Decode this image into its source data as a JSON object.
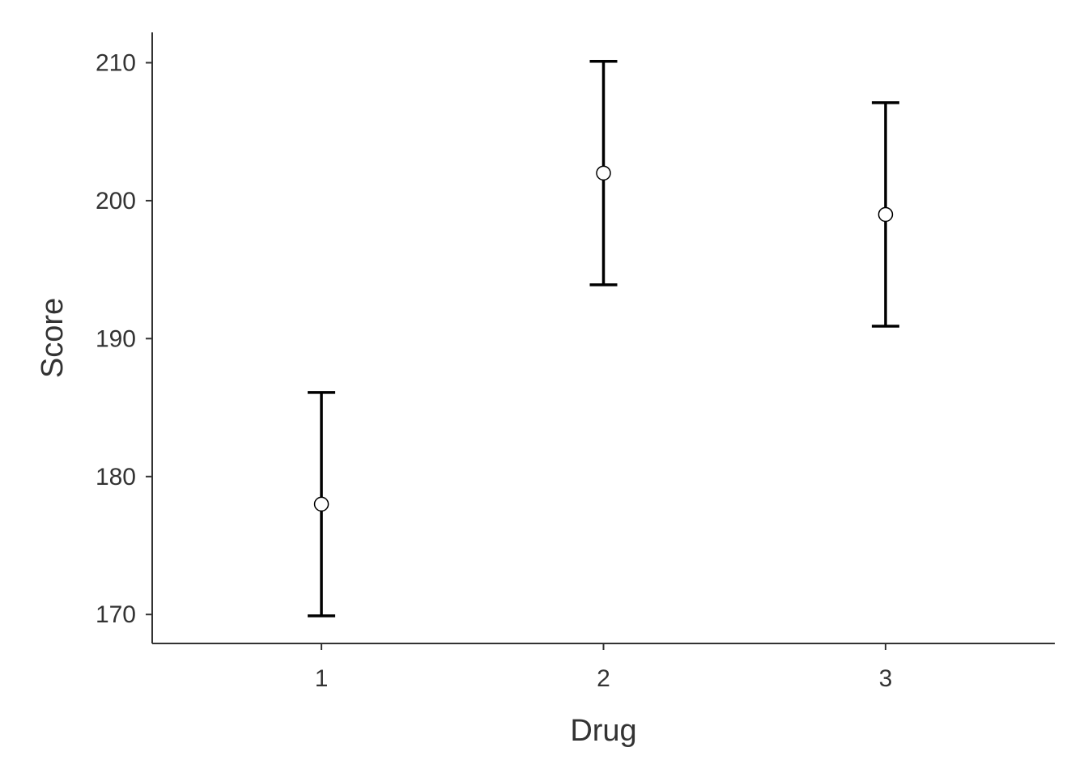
{
  "chart_data": {
    "type": "errorbar",
    "title": "",
    "xlabel": "Drug",
    "ylabel": "Score",
    "categories": [
      "1",
      "2",
      "3"
    ],
    "values": [
      178,
      202,
      199
    ],
    "lower": [
      169.9,
      193.9,
      190.9
    ],
    "upper": [
      186.1,
      210.1,
      207.1
    ],
    "ylim": [
      167.9,
      212.2
    ],
    "yticks": [
      170,
      180,
      190,
      200,
      210
    ],
    "ytick_labels": [
      "170",
      "180",
      "190",
      "200",
      "210"
    ],
    "grid": false,
    "legend": "none"
  }
}
